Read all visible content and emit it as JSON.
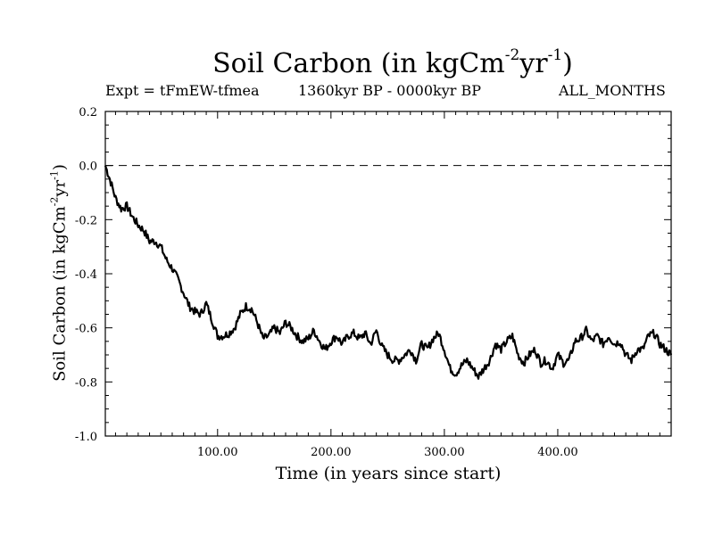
{
  "title": {
    "main": "Soil Carbon (in kgCm",
    "sup1": "-2",
    "mid": "yr",
    "sup2": "-1",
    "end": ")"
  },
  "subtitle": {
    "left": "Expt = tFmEW-tfmea",
    "center": "1360kyr BP - 0000kyr BP",
    "right": "ALL_MONTHS"
  },
  "chart_data": {
    "type": "line",
    "title": "Soil Carbon (in kgCm-2yr-1)",
    "xlabel": "Time (in years since start)",
    "ylabel": "Soil Carbon (in kgCm-2yr-1)",
    "xlim": [
      1,
      500
    ],
    "ylim": [
      -1.0,
      0.2
    ],
    "x_ticks": [
      100,
      200,
      300,
      400
    ],
    "x_tick_labels": [
      "100.00",
      "200.00",
      "300.00",
      "400.00"
    ],
    "y_ticks": [
      0.2,
      0.0,
      -0.2,
      -0.4,
      -0.6,
      -0.8,
      -1.0
    ],
    "y_tick_labels": [
      "0.2",
      "0.0",
      "-0.2",
      "-0.4",
      "-0.6",
      "-0.8",
      "-1.0"
    ],
    "reference_line": {
      "y": 0.0,
      "style": "dashed"
    },
    "series": [
      {
        "name": "Soil Carbon",
        "x": [
          1,
          5,
          10,
          15,
          20,
          25,
          30,
          35,
          40,
          45,
          50,
          55,
          60,
          65,
          70,
          75,
          80,
          85,
          90,
          95,
          100,
          105,
          110,
          115,
          120,
          125,
          130,
          135,
          140,
          145,
          150,
          155,
          160,
          165,
          170,
          175,
          180,
          185,
          190,
          195,
          200,
          205,
          210,
          215,
          220,
          225,
          230,
          235,
          240,
          245,
          250,
          255,
          260,
          265,
          270,
          275,
          280,
          285,
          290,
          295,
          300,
          305,
          310,
          315,
          320,
          325,
          330,
          335,
          340,
          345,
          350,
          355,
          360,
          365,
          370,
          375,
          380,
          385,
          390,
          395,
          400,
          405,
          410,
          415,
          420,
          425,
          430,
          435,
          440,
          445,
          450,
          455,
          460,
          465,
          470,
          475,
          480,
          485,
          490,
          495,
          500
        ],
        "values": [
          0.0,
          -0.05,
          -0.12,
          -0.16,
          -0.15,
          -0.19,
          -0.22,
          -0.24,
          -0.28,
          -0.28,
          -0.3,
          -0.35,
          -0.38,
          -0.42,
          -0.47,
          -0.52,
          -0.54,
          -0.55,
          -0.51,
          -0.57,
          -0.63,
          -0.63,
          -0.62,
          -0.6,
          -0.55,
          -0.52,
          -0.53,
          -0.58,
          -0.64,
          -0.63,
          -0.6,
          -0.62,
          -0.58,
          -0.6,
          -0.63,
          -0.65,
          -0.64,
          -0.61,
          -0.65,
          -0.68,
          -0.65,
          -0.63,
          -0.66,
          -0.63,
          -0.62,
          -0.64,
          -0.62,
          -0.66,
          -0.61,
          -0.67,
          -0.7,
          -0.72,
          -0.72,
          -0.7,
          -0.68,
          -0.72,
          -0.66,
          -0.68,
          -0.64,
          -0.62,
          -0.68,
          -0.75,
          -0.77,
          -0.74,
          -0.72,
          -0.75,
          -0.78,
          -0.75,
          -0.72,
          -0.66,
          -0.68,
          -0.65,
          -0.63,
          -0.7,
          -0.73,
          -0.7,
          -0.68,
          -0.73,
          -0.72,
          -0.75,
          -0.7,
          -0.73,
          -0.72,
          -0.65,
          -0.64,
          -0.61,
          -0.65,
          -0.63,
          -0.66,
          -0.63,
          -0.66,
          -0.65,
          -0.7,
          -0.72,
          -0.68,
          -0.68,
          -0.63,
          -0.62,
          -0.66,
          -0.68,
          -0.7
        ]
      }
    ]
  }
}
